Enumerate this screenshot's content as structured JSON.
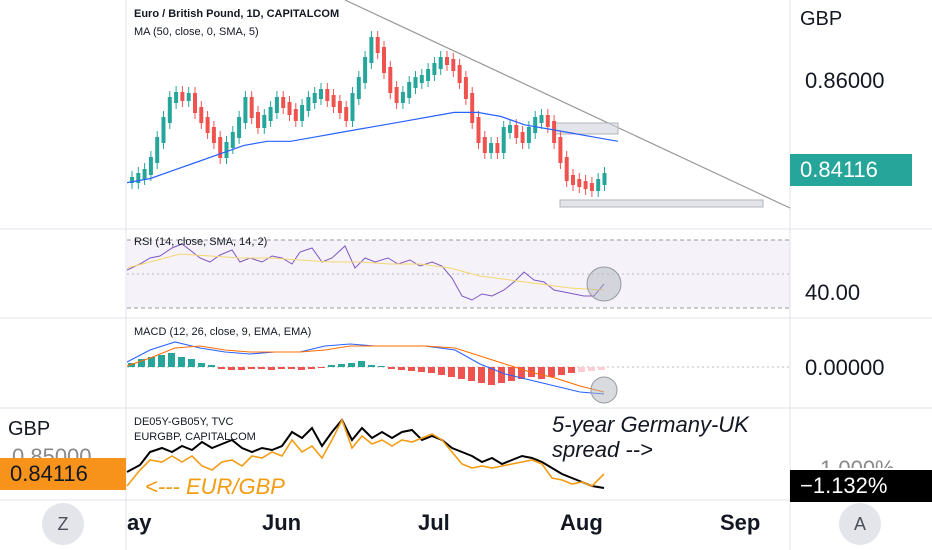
{
  "main_pane": {
    "title": "Euro / British Pound, 1D, CAPITALCOM",
    "ma_label": "MA (50, close, 0, SMA, 5)",
    "currency": "GBP",
    "tick": "0.86000",
    "last_price": "0.84116"
  },
  "rsi_pane": {
    "label": "RSI (14, close, SMA, 14, 2)",
    "tick": "40.00"
  },
  "macd_pane": {
    "label": "MACD (12, 26, close, 9, EMA, EMA)",
    "tick": "0.00000"
  },
  "compare_pane": {
    "legend1": "DE05Y-GB05Y, TVC",
    "legend2": "EURGBP, CAPITALCOM",
    "left_currency": "GBP",
    "left_tick_partial": "0.85000",
    "left_tag": "0.84116",
    "right_tick_partial": "1.000%",
    "right_tag": "−1.132%",
    "annotation_spread": [
      "5-year Germany-UK",
      "spread -->"
    ],
    "annotation_eurgbp": "<--- EUR/GBP"
  },
  "time_axis": {
    "months": [
      "ay",
      "Jun",
      "Jul",
      "Aug",
      "Sep"
    ]
  },
  "buttons": {
    "left": "Z",
    "right": "A"
  },
  "colors": {
    "up": "#26a69a",
    "down": "#ef5350",
    "ma": "#2962ff",
    "rsi": "#7e57c2",
    "rsi_ma": "#f5d76e",
    "macd": "#2962ff",
    "signal": "#ff6d00",
    "spread": "#000000",
    "eurgbp": "#f39c12",
    "price_tag": "#26a69a",
    "eurgbp_tag": "#f7931a"
  },
  "chart_data": {
    "type": "line",
    "price_axis": {
      "tick": 0.86,
      "last": 0.84116
    },
    "ma_series": [
      0.838,
      0.839,
      0.841,
      0.843,
      0.845,
      0.847,
      0.848,
      0.848,
      0.849,
      0.85,
      0.851,
      0.852,
      0.853,
      0.854,
      0.855,
      0.855,
      0.854,
      0.852,
      0.851,
      0.85,
      0.849,
      0.848
    ],
    "rsi_last": 40.0,
    "spread_last_percent": -1.132
  }
}
